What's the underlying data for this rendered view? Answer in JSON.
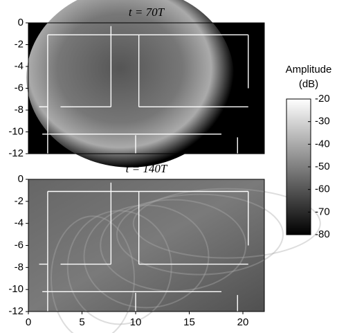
{
  "chart_data": [
    {
      "type": "heatmap",
      "title": "t = 70T",
      "xlim": [
        0,
        22
      ],
      "ylim": [
        -12,
        0
      ],
      "yticks": [
        0,
        -2,
        -4,
        -6,
        -8,
        -10,
        -12
      ]
    },
    {
      "type": "heatmap",
      "title": "t = 140T",
      "xlim": [
        0,
        22
      ],
      "ylim": [
        -12,
        0
      ],
      "xticks": [
        0,
        5,
        10,
        15,
        20
      ],
      "yticks": [
        0,
        -2,
        -4,
        -6,
        -8,
        -10,
        -12
      ]
    }
  ],
  "colorbar": {
    "label_lines": [
      "Amplitude",
      "(dB)"
    ],
    "clim": [
      -80,
      -20
    ],
    "ticks": [
      -20,
      -30,
      -40,
      -50,
      -60,
      -70,
      -80
    ]
  }
}
